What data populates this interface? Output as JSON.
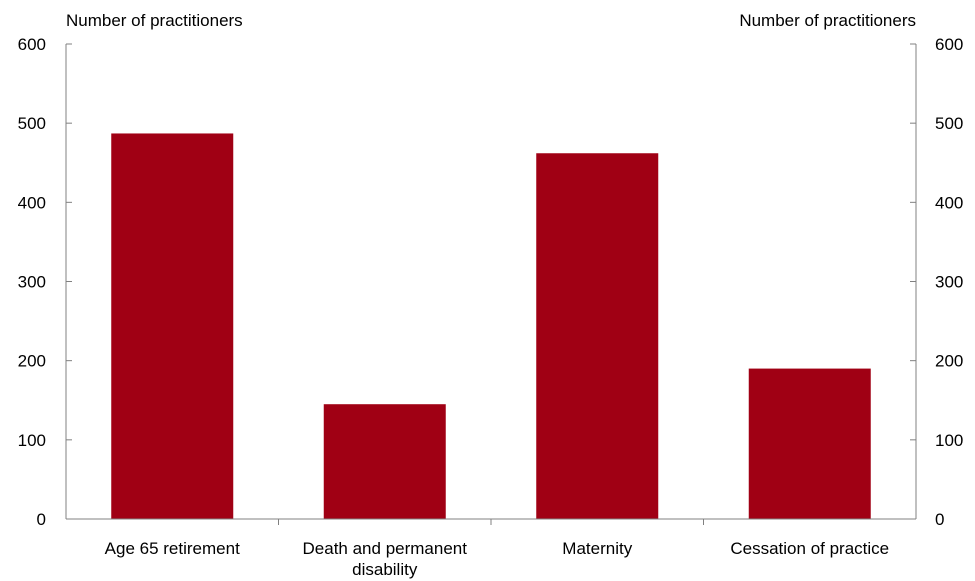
{
  "chart_data": {
    "type": "bar",
    "left_axis_label": "Number of practitioners",
    "right_axis_label": "Number of practitioners",
    "categories": [
      [
        "Age 65 retirement"
      ],
      [
        "Death and permanent",
        "disability"
      ],
      [
        "Maternity"
      ],
      [
        "Cessation of practice"
      ]
    ],
    "values": [
      487,
      145,
      462,
      190
    ],
    "ylim": [
      0,
      600
    ],
    "yticks": [
      "0",
      "100",
      "200",
      "300",
      "400",
      "500",
      "600"
    ],
    "bar_color": "#a00014",
    "grid": false,
    "legend": "none"
  }
}
